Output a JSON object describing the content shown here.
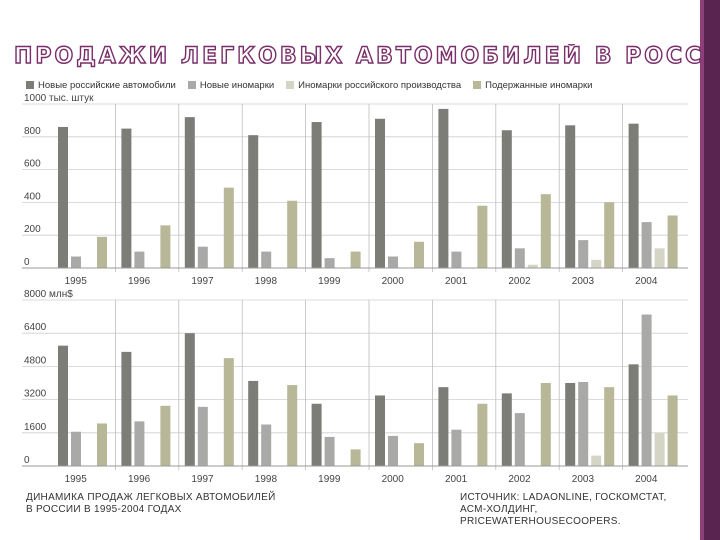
{
  "slide": {
    "title": "ПРОДАЖИ ЛЕГКОВЫХ АВТОМОБИЛЕЙ В РОССИИ (В ТОМ",
    "caption_line1": "ДИНАМИКА ПРОДАЖ ЛЕГКОВЫХ АВТОМОБИЛЕЙ",
    "caption_line2": "В РОССИИ В 1995-2004 ГОДАХ",
    "source_line1": "ИСТОЧНИК: LADAONLINE, ГОСКОМСТАТ,",
    "source_line2": "АСМ-ХОЛДИНГ, PRICEWATERHOUSECOOPERS.",
    "accent_color": "#7a2e6a"
  },
  "legend": [
    {
      "label": "Новые российские автомобили",
      "color": "#7d7d78"
    },
    {
      "label": "Новые иномарки",
      "color": "#a9aaa8"
    },
    {
      "label": "Иномарки российского производства",
      "color": "#d5d5c5"
    },
    {
      "label": "Подержанные иномарки",
      "color": "#b8b798"
    }
  ],
  "chart_data": [
    {
      "type": "bar",
      "ylabel": "тыс. штук",
      "ylim": [
        0,
        1000
      ],
      "yticks": [
        0,
        200,
        400,
        600,
        800,
        1000
      ],
      "categories": [
        "1995",
        "1996",
        "1997",
        "1998",
        "1999",
        "2000",
        "2001",
        "2002",
        "2003",
        "2004"
      ],
      "series": [
        {
          "name": "Новые российские автомобили",
          "color": "#7d7d78",
          "values": [
            860,
            850,
            920,
            810,
            890,
            910,
            970,
            840,
            870,
            880
          ]
        },
        {
          "name": "Новые иномарки",
          "color": "#a9aaa8",
          "values": [
            70,
            100,
            130,
            100,
            60,
            70,
            100,
            120,
            170,
            280
          ]
        },
        {
          "name": "Иномарки российского производства",
          "color": "#d5d5c5",
          "values": [
            0,
            0,
            0,
            0,
            0,
            0,
            0,
            20,
            50,
            120
          ]
        },
        {
          "name": "Подержанные иномарки",
          "color": "#b8b798",
          "values": [
            190,
            260,
            490,
            410,
            100,
            160,
            380,
            450,
            400,
            320
          ]
        }
      ]
    },
    {
      "type": "bar",
      "ylabel": "млн$",
      "ylim": [
        0,
        8000
      ],
      "yticks": [
        0,
        1600,
        3200,
        4800,
        6400,
        8000
      ],
      "categories": [
        "1995",
        "1996",
        "1997",
        "1998",
        "1999",
        "2000",
        "2001",
        "2002",
        "2003",
        "2004"
      ],
      "series": [
        {
          "name": "Новые российские автомобили",
          "color": "#7d7d78",
          "values": [
            5800,
            5500,
            6400,
            4100,
            3000,
            3400,
            3800,
            3500,
            4000,
            4900
          ]
        },
        {
          "name": "Новые иномарки",
          "color": "#a9aaa8",
          "values": [
            1650,
            2150,
            2850,
            2000,
            1400,
            1450,
            1750,
            2550,
            4050,
            7300
          ]
        },
        {
          "name": "Иномарки российского производства",
          "color": "#d5d5c5",
          "values": [
            0,
            0,
            0,
            0,
            0,
            0,
            0,
            0,
            500,
            1600
          ]
        },
        {
          "name": "Подержанные иномарки",
          "color": "#b8b798",
          "values": [
            2050,
            2900,
            5200,
            3900,
            800,
            1100,
            3000,
            4000,
            3800,
            3400
          ]
        }
      ]
    }
  ]
}
